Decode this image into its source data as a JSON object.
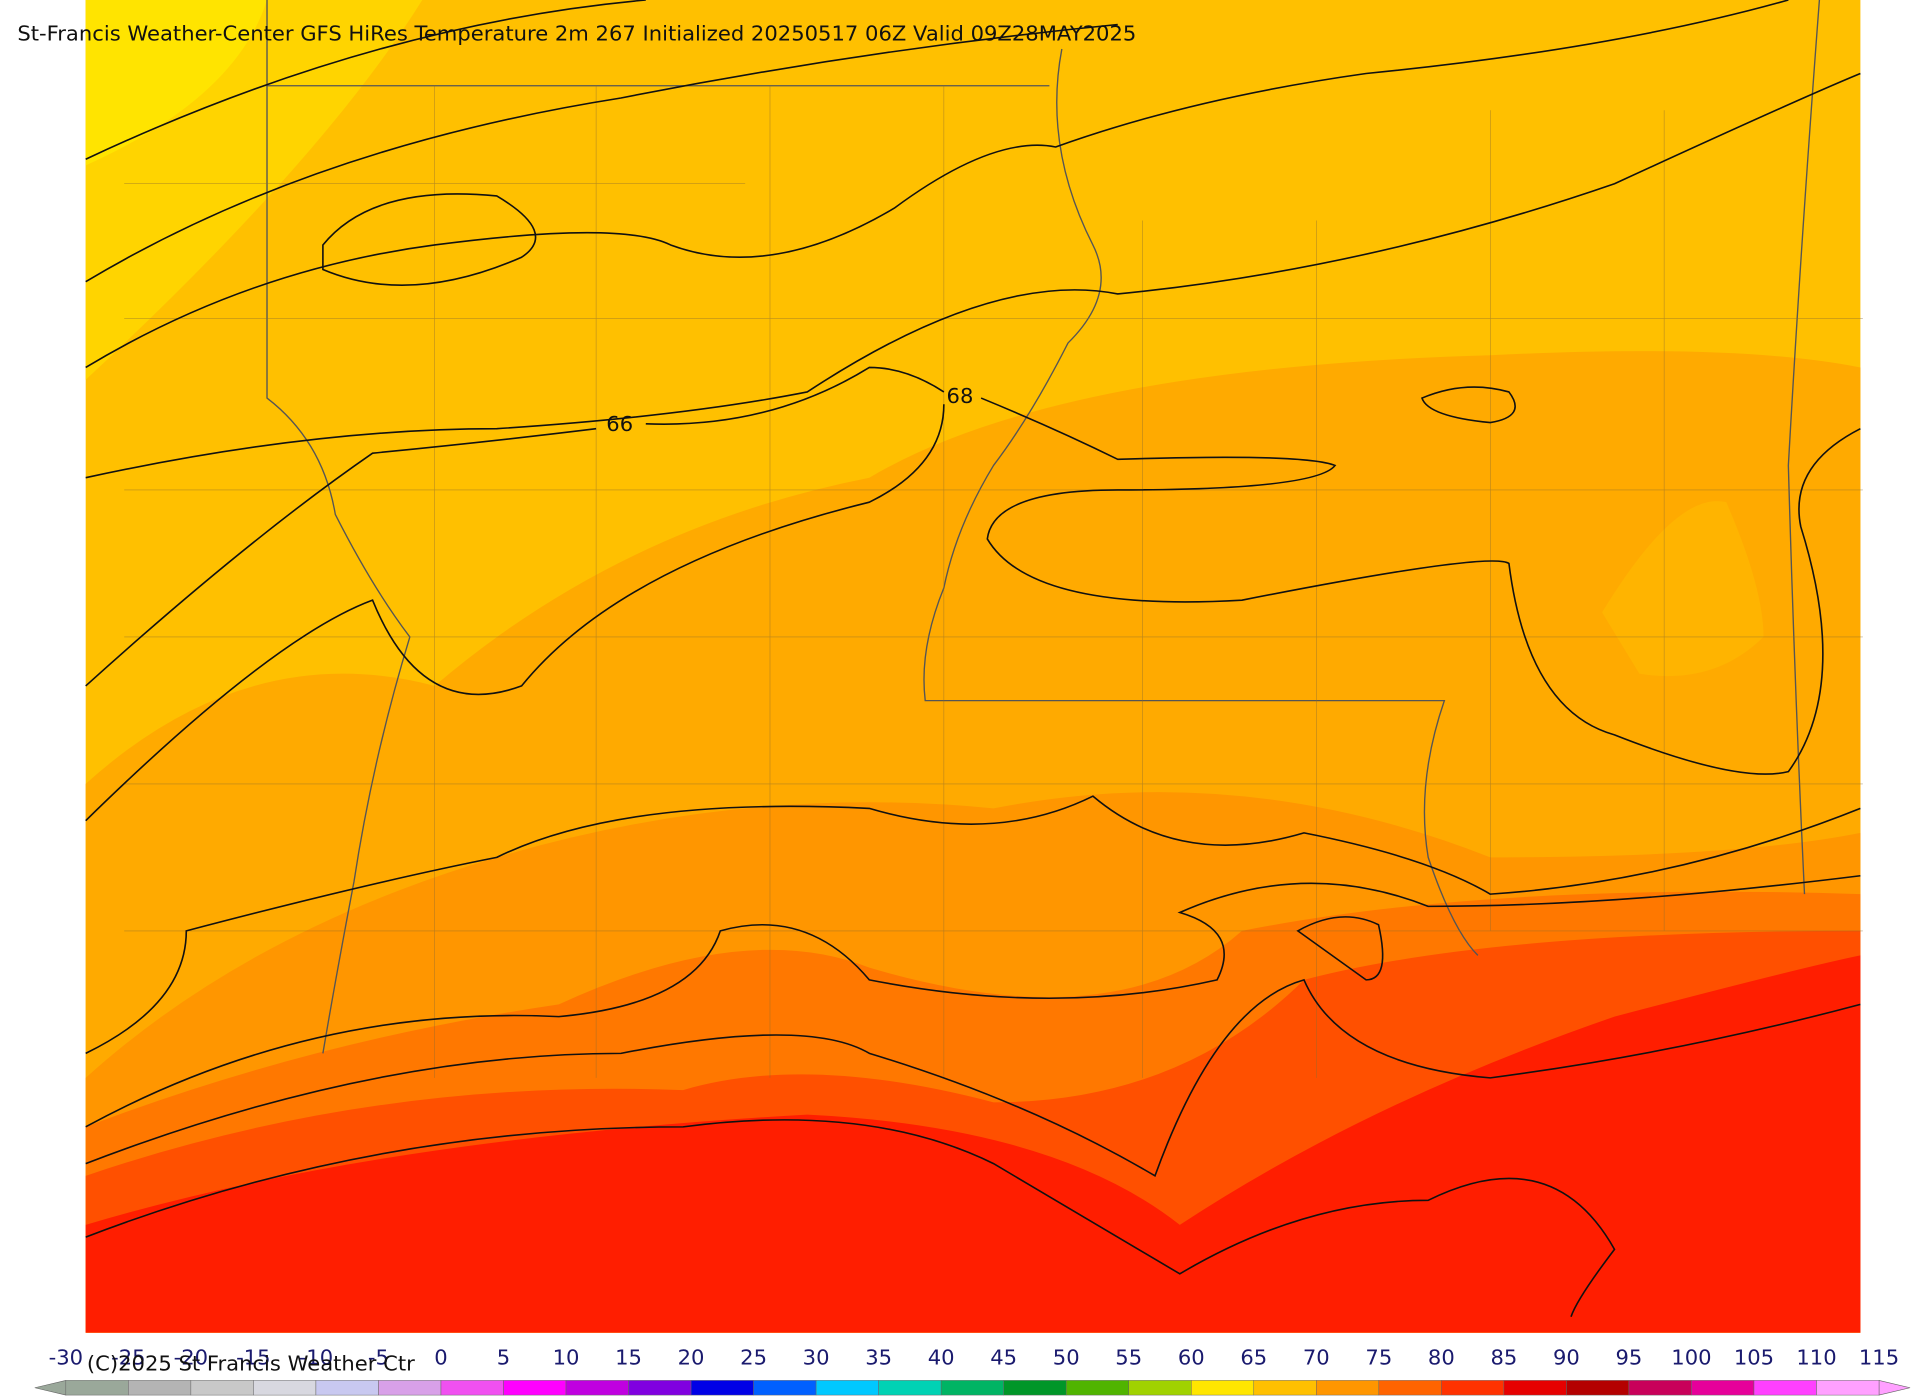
{
  "header": {
    "title": "St-Francis Weather-Center GFS HiRes Temperature 2m  267 Initialized 20250517 06Z Valid 09Z28MAY2025"
  },
  "map": {
    "contour_labels": [
      "66",
      "68"
    ]
  },
  "colorbar": {
    "ticks": [
      -30,
      -25,
      -20,
      -15,
      -10,
      -5,
      0,
      5,
      10,
      15,
      20,
      25,
      30,
      35,
      40,
      45,
      50,
      55,
      60,
      65,
      70,
      75,
      80,
      85,
      90,
      95,
      100,
      105,
      110,
      115
    ],
    "colors": [
      "#9aa89a",
      "#b4b4b4",
      "#c8c8c8",
      "#d8d8e0",
      "#c8c8f0",
      "#d8a0e8",
      "#f050f0",
      "#ff00ff",
      "#c000e0",
      "#8000e0",
      "#0000e6",
      "#0060ff",
      "#00c8ff",
      "#00d2b4",
      "#00b464",
      "#009628",
      "#50b400",
      "#a0d200",
      "#ffe600",
      "#ffc000",
      "#ff9600",
      "#ff6400",
      "#ff3200",
      "#e60000",
      "#b40000",
      "#c8005a",
      "#e6009a",
      "#ff40ff",
      "#ffa0ff"
    ]
  },
  "footer": {
    "copyright": "(C)2025 St Francis Weather Ctr"
  }
}
